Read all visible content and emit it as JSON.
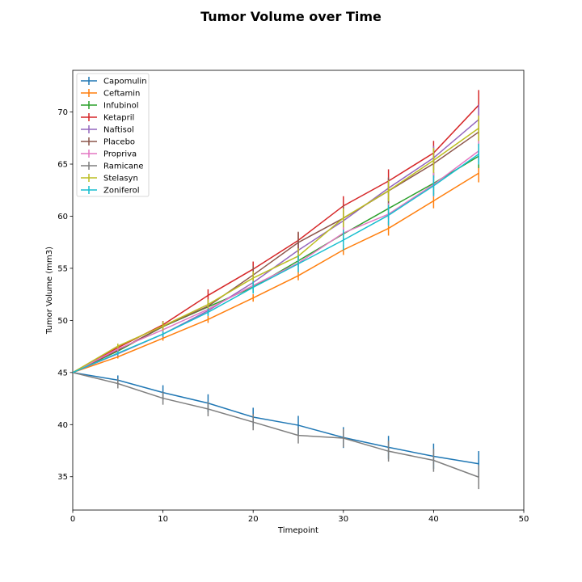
{
  "chart_data": {
    "type": "line",
    "title": "Tumor Volume over Time",
    "xlabel": "Timepoint",
    "ylabel": "Tumor Volume (mm3)",
    "xlim": [
      0,
      50
    ],
    "ylim": [
      31.8,
      74.0
    ],
    "xticks": [
      0,
      10,
      20,
      30,
      40,
      50
    ],
    "yticks": [
      35,
      40,
      45,
      50,
      55,
      60,
      65,
      70
    ],
    "grid": false,
    "legend_position": "top-left",
    "x": [
      0,
      5,
      10,
      15,
      20,
      25,
      30,
      35,
      40,
      45
    ],
    "series": [
      {
        "name": "Capomulin",
        "color": "#1f77b4",
        "values": [
          45.0,
          44.27,
          43.08,
          42.06,
          40.72,
          39.94,
          38.76,
          37.82,
          36.96,
          36.24
        ],
        "errors": [
          0,
          0.45,
          0.7,
          0.85,
          0.9,
          0.9,
          1.0,
          1.1,
          1.22,
          1.22
        ]
      },
      {
        "name": "Ceftamin",
        "color": "#ff7f0e",
        "values": [
          45.0,
          46.5,
          48.29,
          50.09,
          52.16,
          54.29,
          56.77,
          58.83,
          61.47,
          64.13
        ],
        "errors": [
          0,
          0.16,
          0.24,
          0.33,
          0.36,
          0.44,
          0.49,
          0.69,
          0.71,
          0.88
        ]
      },
      {
        "name": "Infubinol",
        "color": "#2ca02c",
        "values": [
          45.0,
          47.06,
          49.4,
          51.3,
          53.2,
          55.72,
          58.3,
          60.74,
          63.16,
          65.76
        ],
        "errors": [
          0,
          0.24,
          0.28,
          0.36,
          0.48,
          0.55,
          0.63,
          0.98,
          1.06,
          1.14
        ]
      },
      {
        "name": "Ketapril",
        "color": "#d62728",
        "values": [
          45.0,
          47.39,
          49.58,
          52.4,
          54.92,
          57.68,
          60.99,
          63.37,
          66.07,
          70.66
        ],
        "errors": [
          0,
          0.26,
          0.36,
          0.58,
          0.73,
          0.76,
          0.93,
          1.13,
          1.16,
          1.45
        ]
      },
      {
        "name": "Naftisol",
        "color": "#9467bd",
        "values": [
          45.0,
          46.8,
          48.69,
          50.93,
          53.64,
          56.73,
          59.56,
          62.69,
          65.6,
          69.27
        ],
        "errors": [
          0,
          0.2,
          0.32,
          0.44,
          0.59,
          0.81,
          0.98,
          1.01,
          1.15,
          1.42
        ]
      },
      {
        "name": "Placebo",
        "color": "#8c564b",
        "values": [
          45.0,
          47.13,
          49.42,
          51.36,
          54.36,
          57.48,
          59.81,
          62.42,
          65.05,
          68.08
        ],
        "errors": [
          0,
          0.22,
          0.4,
          0.61,
          0.84,
          1.03,
          1.22,
          1.29,
          1.37,
          1.35
        ]
      },
      {
        "name": "Propriva",
        "color": "#e377c2",
        "values": [
          45.0,
          47.25,
          49.1,
          51.07,
          53.35,
          55.5,
          58.39,
          60.2,
          63.04,
          66.26
        ],
        "errors": [
          0,
          0.23,
          0.38,
          0.47,
          0.56,
          0.73,
          0.85,
          1.05,
          1.16,
          1.15
        ]
      },
      {
        "name": "Ramicane",
        "color": "#7f7f7f",
        "values": [
          45.0,
          43.94,
          42.53,
          41.5,
          40.24,
          38.97,
          38.7,
          37.45,
          36.57,
          34.96
        ],
        "errors": [
          0,
          0.46,
          0.62,
          0.7,
          0.78,
          0.78,
          0.88,
          1.0,
          1.1,
          1.15
        ]
      },
      {
        "name": "Stelasyn",
        "color": "#bcbd22",
        "values": [
          45.0,
          47.53,
          49.46,
          51.53,
          54.07,
          56.17,
          59.83,
          62.44,
          65.36,
          68.44
        ],
        "errors": [
          0,
          0.24,
          0.43,
          0.49,
          0.62,
          0.74,
          0.9,
          1.0,
          1.2,
          1.22
        ]
      },
      {
        "name": "Zoniferol",
        "color": "#17becf",
        "values": [
          45.0,
          46.85,
          48.69,
          50.78,
          53.17,
          55.43,
          57.71,
          60.09,
          62.92,
          65.96
        ],
        "errors": [
          0,
          0.19,
          0.26,
          0.36,
          0.6,
          0.81,
          0.98,
          1.0,
          1.0,
          1.0
        ]
      }
    ]
  }
}
